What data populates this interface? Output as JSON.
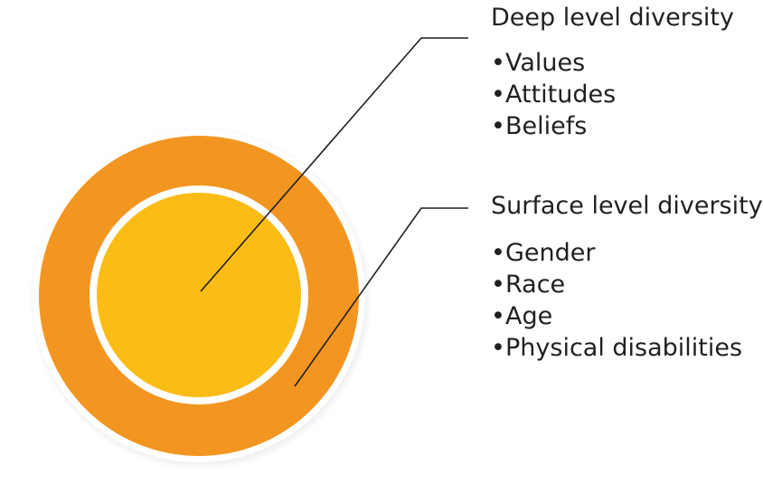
{
  "diagram": {
    "deep_level": {
      "heading": "Deep level diversity",
      "items": [
        "Values",
        "Attitudes",
        "Beliefs"
      ]
    },
    "surface_level": {
      "heading": "Surface level diversity",
      "items": [
        "Gender",
        "Race",
        "Age",
        "Physical disabilities"
      ]
    },
    "bullet_char": "•",
    "colors": {
      "outer_ring": "#f39621",
      "inner_circle": "#fbbd15",
      "ring_border": "#ffffff",
      "text": "#231f20",
      "leader_line": "#231f20"
    }
  }
}
